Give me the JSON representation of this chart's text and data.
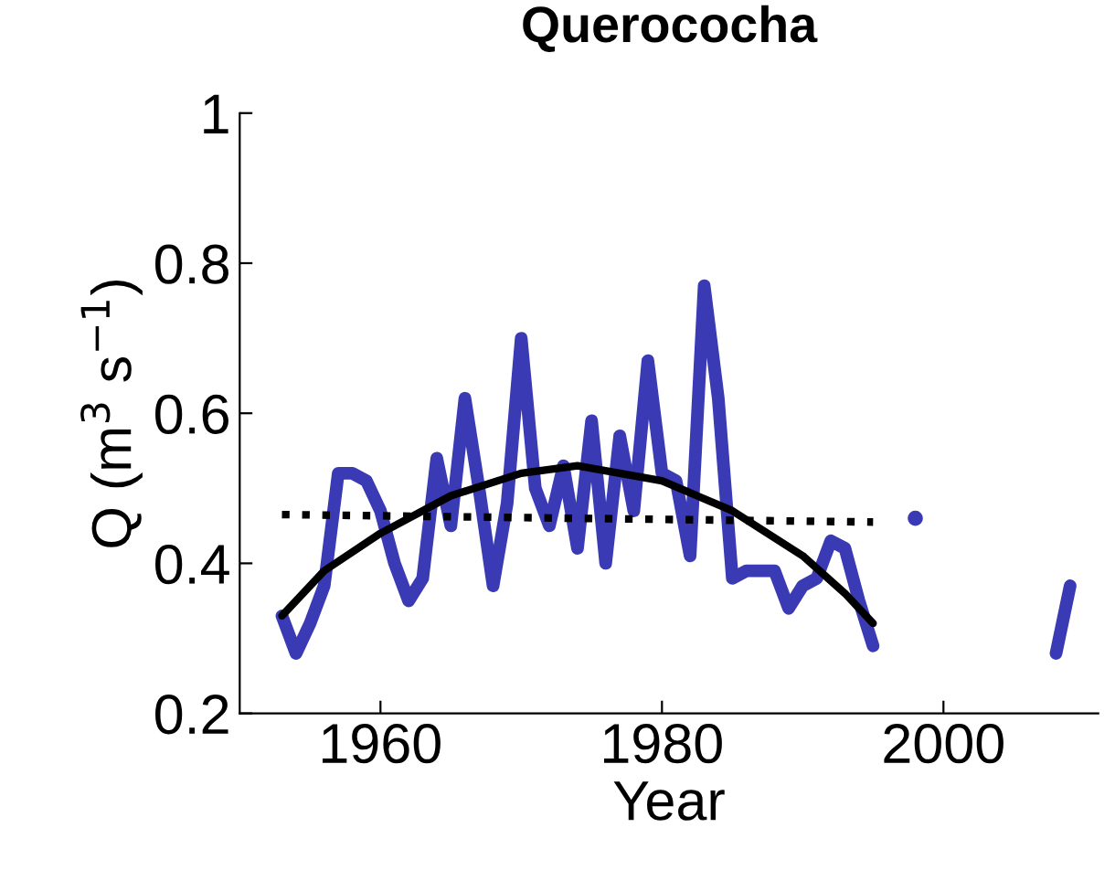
{
  "chart_data": {
    "type": "line",
    "title": "Querococha",
    "xlabel": "Year",
    "ylabel": "Q (m$^{3}$ s$^{−1}$)",
    "xlim": [
      1950,
      2011
    ],
    "xticks": [
      1960,
      1980,
      2000
    ],
    "ylim": [
      0.2,
      1
    ],
    "yticks": [
      0.2,
      0.4,
      0.6,
      0.8,
      1
    ],
    "grid": false,
    "legend": false,
    "marker": "none",
    "series": [
      {
        "color": "#3a3ab4",
        "line_style": "solid",
        "x": [
          1953,
          1954,
          1955,
          1956,
          1957,
          1958,
          1959,
          1960,
          1961,
          1962,
          1963,
          1964,
          1965,
          1966,
          1967,
          1968,
          1969,
          1970,
          1971,
          1972,
          1973,
          1974,
          1975,
          1976,
          1977,
          1978,
          1979,
          1980,
          1981,
          1982,
          1983,
          1984,
          1985,
          1986,
          1987,
          1988,
          1989,
          1990,
          1991,
          1992,
          1993,
          1994,
          1995,
          1996,
          1997,
          1998,
          1999,
          2007,
          2008,
          2009
        ],
        "values": [
          0.33,
          0.28,
          0.32,
          0.37,
          0.52,
          0.52,
          0.51,
          0.47,
          0.4,
          0.35,
          0.38,
          0.54,
          0.45,
          0.62,
          0.5,
          0.37,
          0.48,
          0.7,
          0.5,
          0.45,
          0.53,
          0.42,
          0.59,
          0.4,
          0.57,
          0.47,
          0.67,
          0.52,
          0.51,
          0.41,
          0.77,
          0.62,
          0.38,
          0.39,
          0.39,
          0.39,
          0.34,
          0.37,
          0.38,
          0.43,
          0.42,
          0.35,
          0.29,
          null,
          null,
          0.46,
          null,
          null,
          0.28,
          0.37
        ]
      },
      {
        "color": "#000000",
        "line_style": "solid",
        "x": [
          1953,
          1956,
          1960,
          1965,
          1970,
          1974,
          1980,
          1985,
          1990,
          1993,
          1995
        ],
        "values": [
          0.33,
          0.39,
          0.44,
          0.49,
          0.52,
          0.53,
          0.51,
          0.47,
          0.41,
          0.36,
          0.32
        ]
      },
      {
        "color": "#000000",
        "line_style": "dotted",
        "x": [
          1953,
          1995
        ],
        "values": [
          0.465,
          0.455
        ]
      }
    ]
  }
}
